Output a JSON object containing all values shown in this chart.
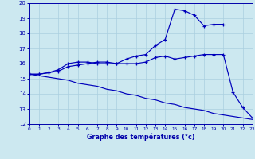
{
  "xlabel": "Graphe des températures (°c)",
  "bg_color": "#cce8f0",
  "grid_color": "#aacfdf",
  "line_color": "#0000bb",
  "xlim": [
    0,
    23
  ],
  "ylim": [
    12,
    20
  ],
  "xticks": [
    0,
    1,
    2,
    3,
    4,
    5,
    6,
    7,
    8,
    9,
    10,
    11,
    12,
    13,
    14,
    15,
    16,
    17,
    18,
    19,
    20,
    21,
    22,
    23
  ],
  "yticks": [
    12,
    13,
    14,
    15,
    16,
    17,
    18,
    19,
    20
  ],
  "line1_x": [
    0,
    1,
    2,
    3,
    4,
    5,
    6,
    7,
    8,
    9,
    10,
    11,
    12,
    13,
    14,
    15,
    16,
    17,
    18,
    19,
    20,
    21,
    22,
    23
  ],
  "line1_y": [
    15.3,
    15.3,
    15.4,
    15.5,
    15.8,
    15.9,
    16.0,
    16.1,
    16.1,
    16.0,
    16.0,
    16.0,
    16.1,
    16.4,
    16.5,
    16.3,
    16.4,
    16.5,
    16.6,
    16.6,
    16.6,
    14.1,
    13.1,
    12.4
  ],
  "line2_x": [
    0,
    1,
    2,
    3,
    4,
    5,
    6,
    7,
    8,
    9,
    10,
    11,
    12,
    13,
    14,
    15,
    16,
    17,
    18,
    19,
    20
  ],
  "line2_y": [
    15.3,
    15.3,
    15.4,
    15.6,
    16.0,
    16.1,
    16.1,
    16.0,
    16.0,
    16.0,
    16.3,
    16.5,
    16.6,
    17.2,
    17.6,
    19.6,
    19.5,
    19.2,
    18.5,
    18.6,
    18.6
  ],
  "line3_x": [
    0,
    1,
    2,
    3,
    4,
    5,
    6,
    7,
    8,
    9,
    10,
    11,
    12,
    13,
    14,
    15,
    16,
    17,
    18,
    19,
    20,
    21,
    22,
    23
  ],
  "line3_y": [
    15.3,
    15.2,
    15.1,
    15.0,
    14.9,
    14.7,
    14.6,
    14.5,
    14.3,
    14.2,
    14.0,
    13.9,
    13.7,
    13.6,
    13.4,
    13.3,
    13.1,
    13.0,
    12.9,
    12.7,
    12.6,
    12.5,
    12.4,
    12.3
  ]
}
